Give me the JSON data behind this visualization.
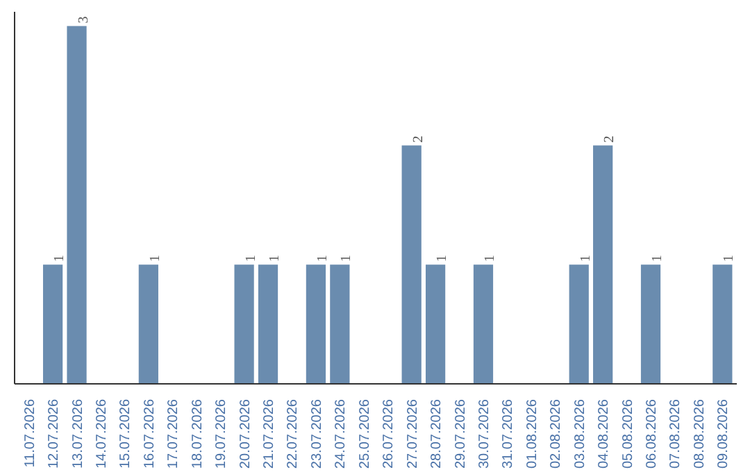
{
  "chart_data": {
    "type": "bar",
    "categories": [
      "11.07.2026",
      "12.07.2026",
      "13.07.2026",
      "14.07.2026",
      "15.07.2026",
      "16.07.2026",
      "17.07.2026",
      "18.07.2026",
      "19.07.2026",
      "20.07.2026",
      "21.07.2026",
      "22.07.2026",
      "23.07.2026",
      "24.07.2026",
      "25.07.2026",
      "26.07.2026",
      "27.07.2026",
      "28.07.2026",
      "29.07.2026",
      "30.07.2026",
      "31.07.2026",
      "01.08.2026",
      "02.08.2026",
      "03.08.2026",
      "04.08.2026",
      "05.08.2026",
      "06.08.2026",
      "07.08.2026",
      "08.08.2026",
      "09.08.2026"
    ],
    "values": [
      0,
      1,
      3,
      0,
      0,
      1,
      0,
      0,
      0,
      1,
      1,
      0,
      1,
      1,
      0,
      0,
      2,
      1,
      0,
      1,
      0,
      0,
      0,
      1,
      2,
      0,
      1,
      0,
      0,
      1
    ],
    "value_labels": [
      null,
      "1",
      "3",
      null,
      null,
      "1",
      null,
      null,
      null,
      "1",
      "1",
      null,
      "1",
      "1",
      null,
      null,
      "2",
      "1",
      null,
      "1",
      null,
      null,
      null,
      "1",
      "2",
      null,
      "1",
      null,
      null,
      "1"
    ],
    "color": "#6a8caf",
    "tick_labels": "x",
    "grid": false
  }
}
